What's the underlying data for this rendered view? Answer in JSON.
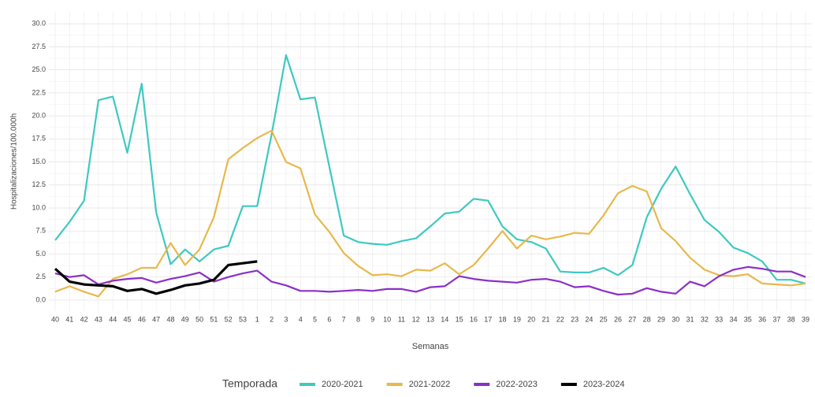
{
  "chart_data": {
    "type": "line",
    "y_label": "Hospitalizaciones/100.000h",
    "x_label": "Semanas",
    "legend_title": "Temporada",
    "legend_position": "bottom",
    "grid": true,
    "categories": [
      "40",
      "41",
      "42",
      "43",
      "44",
      "45",
      "46",
      "47",
      "48",
      "49",
      "50",
      "51",
      "52",
      "53",
      "1",
      "2",
      "3",
      "4",
      "5",
      "6",
      "7",
      "8",
      "9",
      "10",
      "11",
      "12",
      "13",
      "14",
      "15",
      "16",
      "17",
      "18",
      "19",
      "20",
      "21",
      "22",
      "23",
      "24",
      "25",
      "26",
      "27",
      "28",
      "29",
      "30",
      "31",
      "32",
      "33",
      "34",
      "35",
      "36",
      "37",
      "38",
      "39"
    ],
    "ylim": [
      -1.2,
      31.3
    ],
    "yticks": [
      {
        "value": 0,
        "label": "0.0"
      },
      2.5,
      {
        "value": 5,
        "label": "5.0"
      },
      7.5,
      {
        "value": 10,
        "label": "10.0"
      },
      12.5,
      {
        "value": 15,
        "label": "15.0"
      },
      17.5,
      {
        "value": 20,
        "label": "20.0"
      },
      22.5,
      {
        "value": 25,
        "label": "25.0"
      },
      27.5,
      {
        "value": 30,
        "label": "30.0"
      }
    ],
    "series": [
      {
        "name": "2020-2021",
        "color": "#3ec9c1",
        "values": [
          6.5,
          8.5,
          10.8,
          21.7,
          22.1,
          16,
          23.5,
          9.5,
          3.9,
          5.5,
          4.2,
          5.5,
          5.9,
          10.2,
          10.2,
          18,
          26.6,
          21.8,
          22,
          14.5,
          7,
          6.3,
          6.1,
          6.0,
          6.4,
          6.7,
          8,
          9.4,
          9.6,
          11,
          10.8,
          8,
          6.6,
          6.3,
          5.6,
          3.1,
          3.0,
          3.0,
          3.5,
          2.7,
          3.8,
          9,
          12.1,
          14.5,
          11.5,
          8.7,
          7.4,
          5.7,
          5.1,
          4.2,
          2.2,
          2.2,
          1.8
        ]
      },
      {
        "name": "2021-2022",
        "color": "#e8b84b",
        "values": [
          0.9,
          1.5,
          0.9,
          0.4,
          2.3,
          2.8,
          3.5,
          3.5,
          6.2,
          3.8,
          5.5,
          9,
          15.3,
          16.5,
          17.6,
          18.4,
          15,
          14.3,
          9.3,
          7.4,
          5.1,
          3.7,
          2.7,
          2.8,
          2.6,
          3.3,
          3.2,
          4,
          2.8,
          3.8,
          5.6,
          7.5,
          5.6,
          7,
          6.6,
          6.9,
          7.3,
          7.2,
          9.2,
          11.6,
          12.4,
          11.8,
          7.8,
          6.4,
          4.6,
          3.3,
          2.7,
          2.6,
          2.8,
          1.8,
          1.7,
          1.6,
          1.8
        ]
      },
      {
        "name": "2022-2023",
        "color": "#8b2fc9",
        "values": [
          2.9,
          2.5,
          2.7,
          1.7,
          2.1,
          2.3,
          2.4,
          1.9,
          2.3,
          2.6,
          3.0,
          2.0,
          2.5,
          2.9,
          3.2,
          2.0,
          1.6,
          1.0,
          1.0,
          0.9,
          1.0,
          1.1,
          1.0,
          1.2,
          1.2,
          0.9,
          1.4,
          1.5,
          2.6,
          2.3,
          2.1,
          2.0,
          1.9,
          2.2,
          2.3,
          2.0,
          1.4,
          1.5,
          1.0,
          0.6,
          0.7,
          1.3,
          0.9,
          0.7,
          2.0,
          1.5,
          2.6,
          3.3,
          3.6,
          3.4,
          3.1,
          3.1,
          2.5
        ]
      },
      {
        "name": "2023-2024",
        "color": "#000000",
        "values": [
          3.4,
          2.0,
          1.7,
          1.6,
          1.5,
          1.0,
          1.2,
          0.7,
          1.1,
          1.6,
          1.8,
          2.2,
          3.8,
          4.0,
          4.2,
          null,
          null,
          null,
          null,
          null,
          null,
          null,
          null,
          null,
          null,
          null,
          null,
          null,
          null,
          null,
          null,
          null,
          null,
          null,
          null,
          null,
          null,
          null,
          null,
          null,
          null,
          null,
          null,
          null,
          null,
          null,
          null,
          null,
          null,
          null,
          null,
          null,
          null
        ]
      }
    ]
  }
}
